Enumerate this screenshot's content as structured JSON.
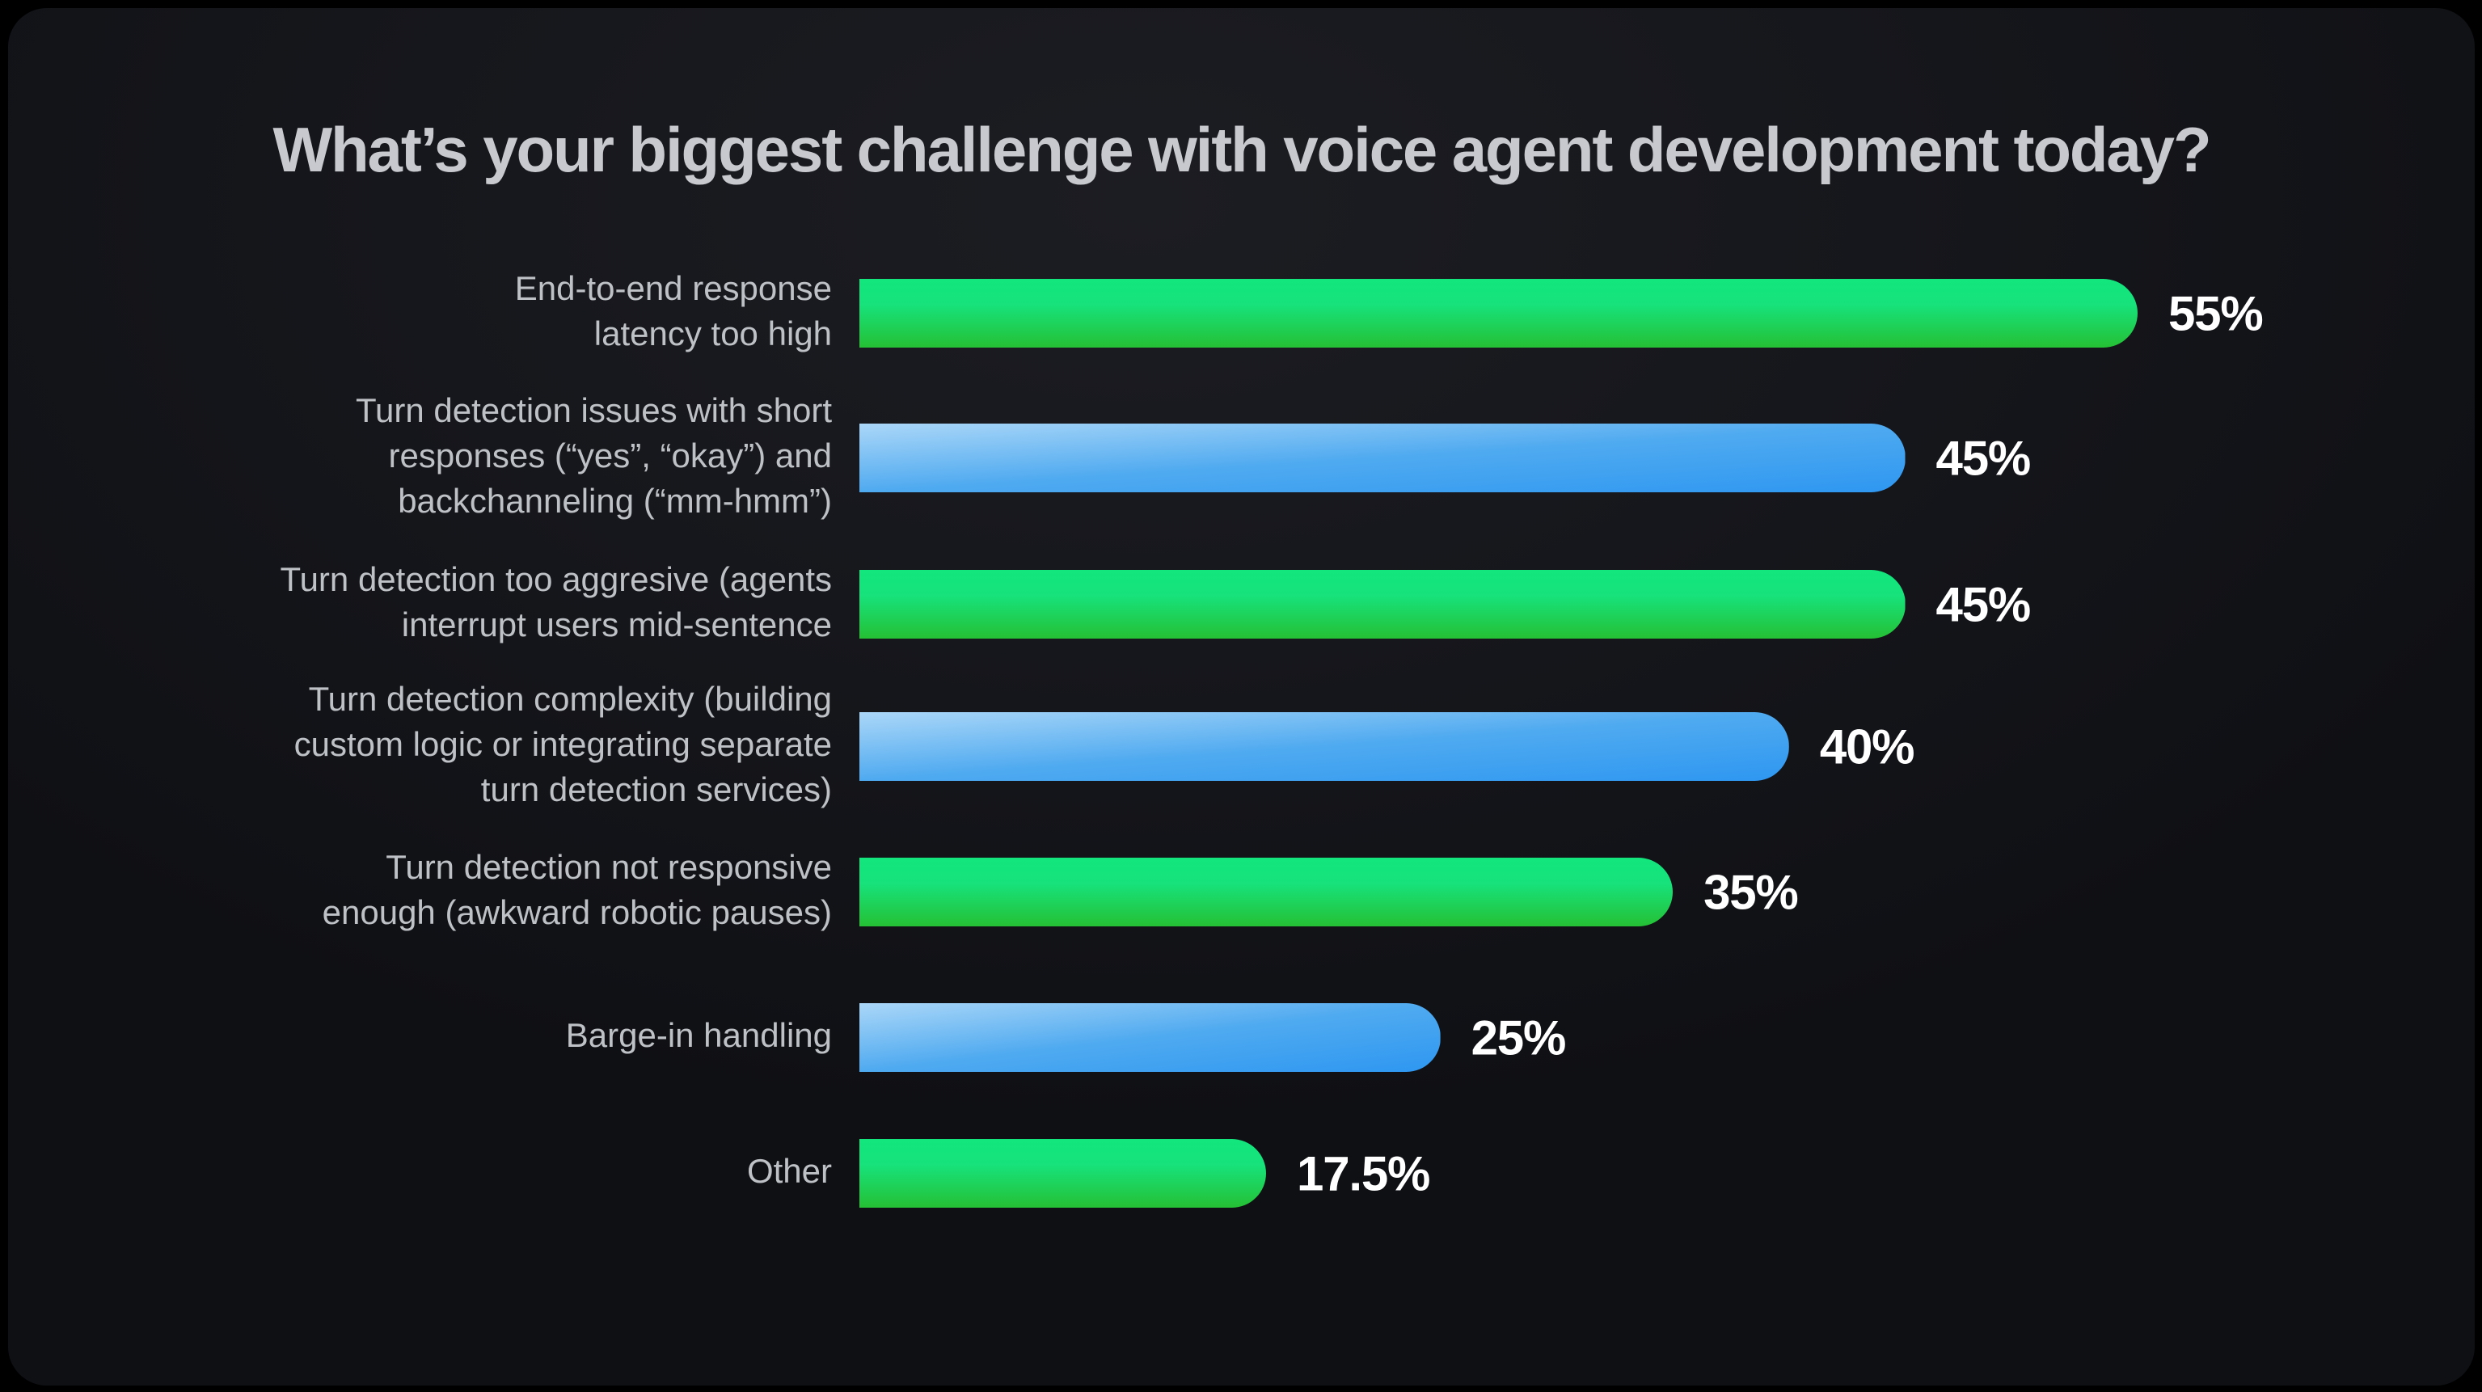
{
  "title": "What’s your biggest challenge with voice agent development today?",
  "colors": {
    "page_background": "#000000",
    "card_background": "#17181c",
    "title_text": "#c7c9cf",
    "category_text": "#bec1c6",
    "value_text": "#ffffff",
    "green_gradient": [
      "#12e67d",
      "#17e27b",
      "#25c034"
    ],
    "blue_gradient": [
      "#abd7f8",
      "#4faaf0",
      "#2e97f1"
    ]
  },
  "chart_data": {
    "type": "bar",
    "orientation": "horizontal",
    "title": "What’s your biggest challenge with voice agent development today?",
    "xlabel": "",
    "ylabel": "",
    "xlim": [
      0,
      55
    ],
    "grid": false,
    "legend": "none",
    "value_label_position": "right of bar end",
    "categories": [
      "End-to-end response\nlatency too high",
      "Turn detection issues with short\nresponses (“yes”, “okay”) and\nbackchanneling (“mm-hmm”)",
      "Turn detection too aggresive (agents\ninterrupt users mid-sentence",
      "Turn detection complexity (building\ncustom logic or integrating separate\nturn detection services)",
      "Turn detection not responsive\nenough (awkward robotic pauses)",
      "Barge-in handling",
      "Other"
    ],
    "values": [
      55,
      45,
      45,
      40,
      35,
      25,
      17.5
    ],
    "rows": [
      {
        "label": "End-to-end response\nlatency too high",
        "value": 55,
        "display": "55%",
        "color": "green"
      },
      {
        "label": "Turn detection issues with short\nresponses (“yes”, “okay”) and\nbackchanneling (“mm-hmm”)",
        "value": 45,
        "display": "45%",
        "color": "blue"
      },
      {
        "label": "Turn detection too aggresive (agents\ninterrupt users mid-sentence",
        "value": 45,
        "display": "45%",
        "color": "green"
      },
      {
        "label": "Turn detection complexity (building\ncustom logic or integrating separate\nturn detection services)",
        "value": 40,
        "display": "40%",
        "color": "blue"
      },
      {
        "label": "Turn detection not responsive\nenough (awkward robotic pauses)",
        "value": 35,
        "display": "35%",
        "color": "green"
      },
      {
        "label": "Barge-in handling",
        "value": 25,
        "display": "25%",
        "color": "blue"
      },
      {
        "label": "Other",
        "value": 17.5,
        "display": "17.5%",
        "color": "green"
      }
    ]
  }
}
